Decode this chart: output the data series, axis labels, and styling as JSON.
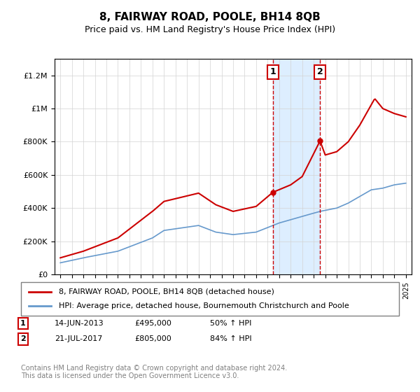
{
  "title": "8, FAIRWAY ROAD, POOLE, BH14 8QB",
  "subtitle": "Price paid vs. HM Land Registry's House Price Index (HPI)",
  "legend_line1": "8, FAIRWAY ROAD, POOLE, BH14 8QB (detached house)",
  "legend_line2": "HPI: Average price, detached house, Bournemouth Christchurch and Poole",
  "red_color": "#cc0000",
  "blue_color": "#6699cc",
  "shade_color": "#ddeeff",
  "annotation1": {
    "label": "1",
    "date_num": 2013.45,
    "price": 495000,
    "date_str": "14-JUN-2013",
    "price_str": "£495,000",
    "pct_str": "50% ↑ HPI"
  },
  "annotation2": {
    "label": "2",
    "date_num": 2017.55,
    "price": 805000,
    "date_str": "21-JUL-2017",
    "price_str": "£805,000",
    "pct_str": "84% ↑ HPI"
  },
  "footer": "Contains HM Land Registry data © Crown copyright and database right 2024.\nThis data is licensed under the Open Government Licence v3.0.",
  "ylim": [
    0,
    1300000
  ],
  "xlim": [
    1994.5,
    2025.5
  ],
  "yticks": [
    0,
    200000,
    400000,
    600000,
    800000,
    1000000,
    1200000
  ],
  "red_key_x": [
    1995,
    1997,
    2000,
    2003,
    2004,
    2007,
    2008.5,
    2010,
    2012,
    2013.45,
    2015,
    2016,
    2017.55,
    2018,
    2019,
    2020,
    2021,
    2022.3,
    2023,
    2024,
    2025
  ],
  "red_key_y": [
    100000,
    140000,
    220000,
    380000,
    440000,
    490000,
    420000,
    380000,
    410000,
    495000,
    540000,
    590000,
    805000,
    720000,
    740000,
    800000,
    900000,
    1060000,
    1000000,
    970000,
    950000
  ],
  "blue_key_x": [
    1995,
    1997,
    2000,
    2003,
    2004,
    2007,
    2008.5,
    2010,
    2012,
    2014,
    2016,
    2017.55,
    2019,
    2020,
    2021,
    2022,
    2023,
    2024,
    2025
  ],
  "blue_key_y": [
    70000,
    100000,
    140000,
    220000,
    265000,
    295000,
    255000,
    240000,
    255000,
    310000,
    350000,
    380000,
    400000,
    430000,
    470000,
    510000,
    520000,
    540000,
    550000
  ]
}
